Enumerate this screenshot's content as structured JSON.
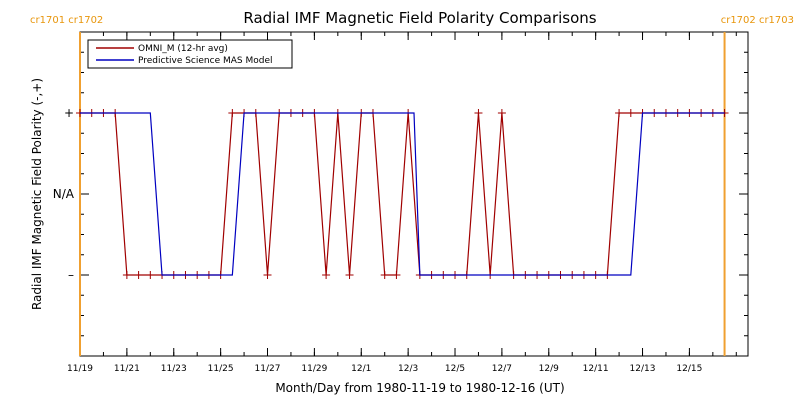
{
  "chart_data": {
    "type": "line",
    "title": "Radial IMF Magnetic Field Polarity Comparisons",
    "xlabel": "Month/Day from 1980-11-19 to 1980-12-16 (UT)",
    "ylabel": "Radial IMF Magnetic Field Polarity (-,+)",
    "xlim": [
      "1980-11-19T00:00",
      "1980-12-17T12:00"
    ],
    "ylim": [
      -2,
      2
    ],
    "x_ticks": [
      "11/19",
      "11/21",
      "11/23",
      "11/25",
      "11/27",
      "11/29",
      "12/1",
      "12/3",
      "12/5",
      "12/7",
      "12/9",
      "12/11",
      "12/13",
      "12/15"
    ],
    "x_tick_dates": [
      "1980-11-19",
      "1980-11-21",
      "1980-11-23",
      "1980-11-25",
      "1980-11-27",
      "1980-11-29",
      "1980-12-01",
      "1980-12-03",
      "1980-12-05",
      "1980-12-07",
      "1980-12-09",
      "1980-12-11",
      "1980-12-13",
      "1980-12-15"
    ],
    "y_ticks": [
      {
        "value": 1,
        "label": "+"
      },
      {
        "value": 0,
        "label": "N/A"
      },
      {
        "value": -1,
        "label": "–"
      }
    ],
    "carrington_markers": [
      {
        "date": "1980-11-19T00:00",
        "label": "cr1701 cr1702",
        "position": "left"
      },
      {
        "date": "1980-12-16T12:00",
        "label": "cr1702 cr1703",
        "position": "right"
      }
    ],
    "legend": {
      "placement": "top-left"
    },
    "series": [
      {
        "name": "OMNI_M (12-hr avg)",
        "color": "#a00000",
        "markers": true,
        "points": [
          [
            "1980-11-19T00:00",
            1
          ],
          [
            "1980-11-19T12:00",
            1
          ],
          [
            "1980-11-20T00:00",
            1
          ],
          [
            "1980-11-20T12:00",
            1
          ],
          [
            "1980-11-21T00:00",
            -1
          ],
          [
            "1980-11-21T12:00",
            -1
          ],
          [
            "1980-11-22T00:00",
            -1
          ],
          [
            "1980-11-22T12:00",
            -1
          ],
          [
            "1980-11-23T00:00",
            -1
          ],
          [
            "1980-11-23T12:00",
            -1
          ],
          [
            "1980-11-24T00:00",
            -1
          ],
          [
            "1980-11-24T12:00",
            -1
          ],
          [
            "1980-11-25T00:00",
            -1
          ],
          [
            "1980-11-25T12:00",
            1
          ],
          [
            "1980-11-26T00:00",
            1
          ],
          [
            "1980-11-26T12:00",
            1
          ],
          [
            "1980-11-27T00:00",
            -1
          ],
          [
            "1980-11-27T12:00",
            1
          ],
          [
            "1980-11-28T00:00",
            1
          ],
          [
            "1980-11-28T12:00",
            1
          ],
          [
            "1980-11-29T00:00",
            1
          ],
          [
            "1980-11-29T12:00",
            -1
          ],
          [
            "1980-11-30T00:00",
            1
          ],
          [
            "1980-11-30T12:00",
            -1
          ],
          [
            "1980-12-01T00:00",
            1
          ],
          [
            "1980-12-01T12:00",
            1
          ],
          [
            "1980-12-02T00:00",
            -1
          ],
          [
            "1980-12-02T12:00",
            -1
          ],
          [
            "1980-12-03T00:00",
            1
          ],
          [
            "1980-12-03T12:00",
            -1
          ],
          [
            "1980-12-04T00:00",
            -1
          ],
          [
            "1980-12-04T12:00",
            -1
          ],
          [
            "1980-12-05T00:00",
            -1
          ],
          [
            "1980-12-05T12:00",
            -1
          ],
          [
            "1980-12-06T00:00",
            1
          ],
          [
            "1980-12-06T12:00",
            -1
          ],
          [
            "1980-12-07T00:00",
            1
          ],
          [
            "1980-12-07T12:00",
            -1
          ],
          [
            "1980-12-08T00:00",
            -1
          ],
          [
            "1980-12-08T12:00",
            -1
          ],
          [
            "1980-12-09T00:00",
            -1
          ],
          [
            "1980-12-09T12:00",
            -1
          ],
          [
            "1980-12-10T00:00",
            -1
          ],
          [
            "1980-12-10T12:00",
            -1
          ],
          [
            "1980-12-11T00:00",
            -1
          ],
          [
            "1980-12-11T12:00",
            -1
          ],
          [
            "1980-12-12T00:00",
            1
          ],
          [
            "1980-12-12T12:00",
            1
          ],
          [
            "1980-12-13T00:00",
            1
          ],
          [
            "1980-12-13T12:00",
            1
          ],
          [
            "1980-12-14T00:00",
            1
          ],
          [
            "1980-12-14T12:00",
            1
          ],
          [
            "1980-12-15T00:00",
            1
          ],
          [
            "1980-12-15T12:00",
            1
          ],
          [
            "1980-12-16T00:00",
            1
          ],
          [
            "1980-12-16T12:00",
            1
          ]
        ]
      },
      {
        "name": "Predictive Science MAS Model",
        "color": "#0000c0",
        "markers": false,
        "points": [
          [
            "1980-11-19T00:00",
            1
          ],
          [
            "1980-11-22T00:00",
            1
          ],
          [
            "1980-11-22T12:00",
            -1
          ],
          [
            "1980-11-25T12:00",
            -1
          ],
          [
            "1980-11-26T00:00",
            1
          ],
          [
            "1980-12-03T06:00",
            1
          ],
          [
            "1980-12-03T12:00",
            -1
          ],
          [
            "1980-12-12T12:00",
            -1
          ],
          [
            "1980-12-13T00:00",
            1
          ],
          [
            "1980-12-16T12:00",
            1
          ]
        ]
      }
    ]
  }
}
